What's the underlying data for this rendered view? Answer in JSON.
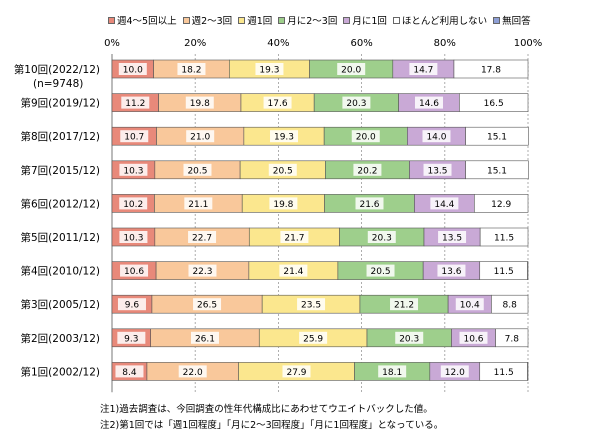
{
  "chart_data": {
    "type": "bar",
    "orientation": "horizontal",
    "stacked": true,
    "xlim": [
      0,
      100
    ],
    "x_ticks": [
      "0%",
      "20%",
      "40%",
      "60%",
      "80%",
      "100%"
    ],
    "categories": [
      "第10回(2022/12)",
      "第9回(2019/12)",
      "第8回(2017/12)",
      "第7回(2015/12)",
      "第6回(2012/12)",
      "第5回(2011/12)",
      "第4回(2010/12)",
      "第3回(2005/12)",
      "第2回(2003/12)",
      "第1回(2002/12)"
    ],
    "category_sublabels": [
      "(n=9748)",
      "",
      "",
      "",
      "",
      "",
      "",
      "",
      "",
      ""
    ],
    "series": [
      {
        "name": "週4～5回以上",
        "color": "#e8897a",
        "values": [
          10.0,
          11.2,
          10.7,
          10.3,
          10.2,
          10.3,
          10.6,
          9.6,
          9.3,
          8.4
        ]
      },
      {
        "name": "週2～3回",
        "color": "#f9c89b",
        "values": [
          18.2,
          19.8,
          21.0,
          20.5,
          21.1,
          22.7,
          22.3,
          26.5,
          26.1,
          22.0
        ]
      },
      {
        "name": "週1回",
        "color": "#fbe78e",
        "values": [
          19.3,
          17.6,
          19.3,
          20.5,
          19.8,
          21.7,
          21.4,
          23.5,
          25.9,
          27.9
        ]
      },
      {
        "name": "月に2～3回",
        "color": "#9ecf8c",
        "values": [
          20.0,
          20.3,
          20.0,
          20.2,
          21.6,
          20.3,
          20.5,
          21.2,
          20.3,
          18.1
        ]
      },
      {
        "name": "月に1回",
        "color": "#c9a9d6",
        "values": [
          14.7,
          14.6,
          14.0,
          13.5,
          14.4,
          13.5,
          13.6,
          10.4,
          10.6,
          12.0
        ]
      },
      {
        "name": "ほとんど利用しない",
        "color": "#ffffff",
        "values": [
          17.8,
          16.5,
          15.1,
          15.1,
          12.9,
          11.5,
          11.5,
          8.8,
          7.8,
          11.5
        ]
      },
      {
        "name": "無回答",
        "color": "#8e9fd6",
        "values": [
          0,
          0,
          0,
          0,
          0,
          0,
          0,
          0,
          0,
          0
        ]
      }
    ],
    "grid": true,
    "legend_position": "top"
  },
  "notes": [
    "注1)過去調査は、今回調査の性年代構成比にあわせてウエイトバックした値。",
    "注2)第1回では「週1回程度」「月に2～3回程度」「月に1回程度」となっている。"
  ]
}
